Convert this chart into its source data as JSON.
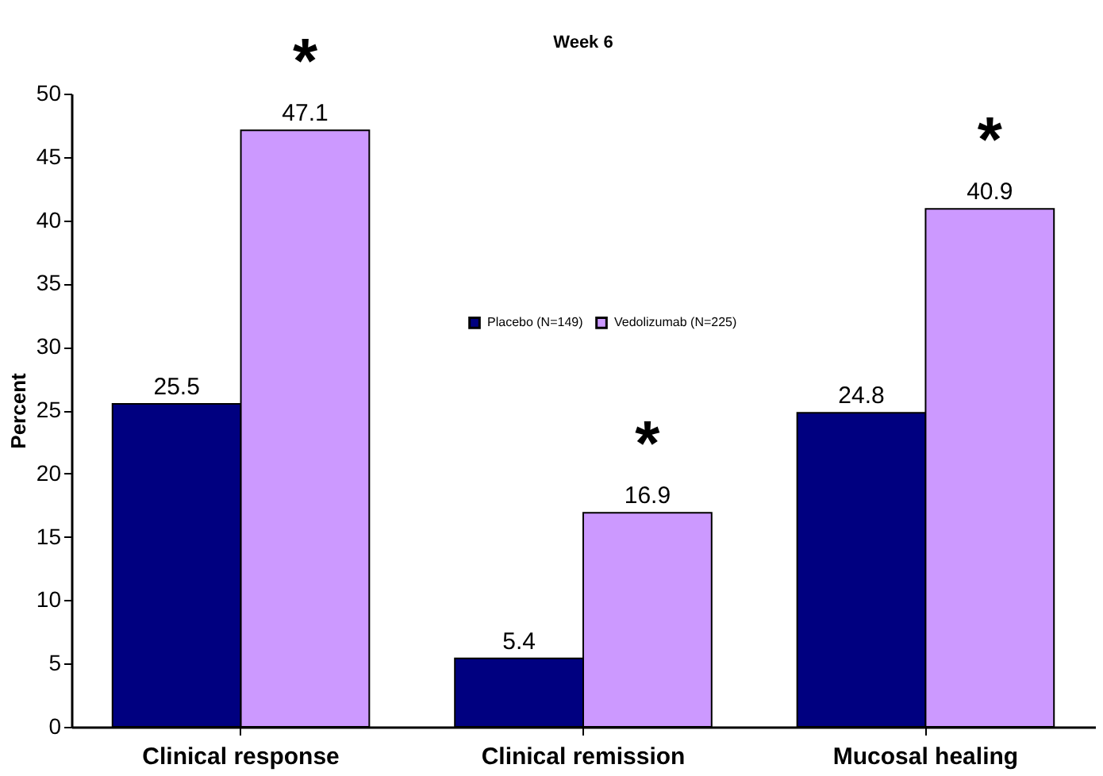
{
  "chart_data": {
    "type": "bar",
    "title": "Week 6",
    "ylabel": "Percent",
    "categories": [
      "Clinical response",
      "Clinical remission",
      "Mucosal healing"
    ],
    "series": [
      {
        "name": "Placebo (N=149)",
        "color": "#000080",
        "values": [
          25.5,
          5.4,
          24.8
        ]
      },
      {
        "name": "Vedolizumab (N=225)",
        "color": "#cc99ff",
        "values": [
          47.1,
          16.9,
          40.9
        ]
      }
    ],
    "ylim": [
      0,
      50
    ],
    "yticks": [
      0,
      5,
      10,
      15,
      20,
      25,
      30,
      35,
      40,
      45,
      50
    ],
    "grid": false,
    "legend": "center",
    "data_labels": true,
    "annotations": [
      {
        "text": "*",
        "x": "Clinical response",
        "y": 47.1
      },
      {
        "text": "*",
        "x": "Clinical remission",
        "y": 16.9
      },
      {
        "text": "*",
        "x": "Mucosal healing",
        "y": 40.9
      }
    ]
  }
}
